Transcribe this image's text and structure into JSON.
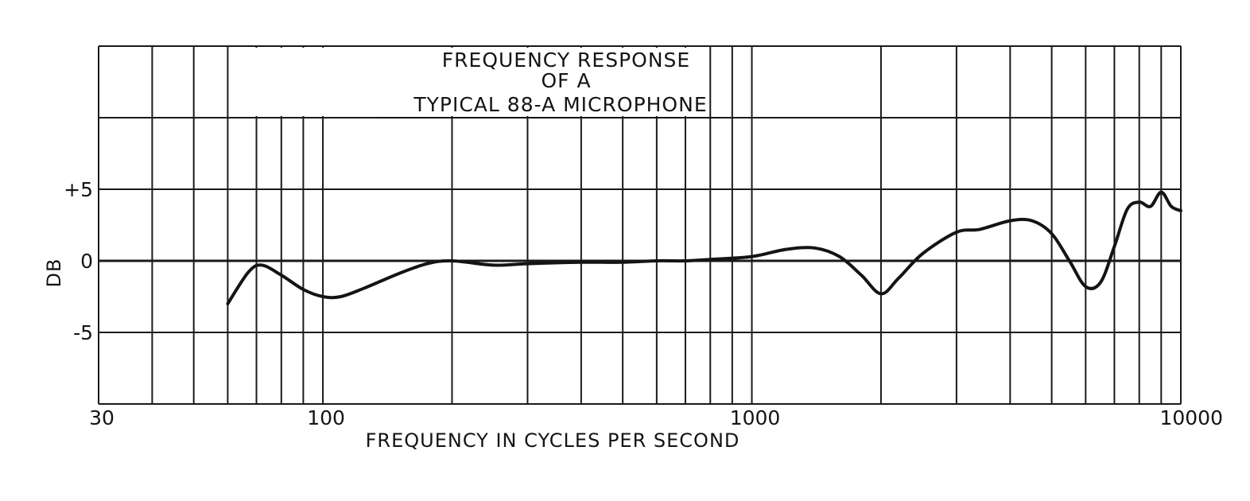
{
  "chart_data": {
    "type": "line",
    "title_lines": [
      "FREQUENCY RESPONSE",
      "OF A",
      "TYPICAL 88-A MICROPHONE"
    ],
    "xlabel": "FREQUENCY IN CYCLES PER SECOND",
    "ylabel": "DB",
    "x_scale": "log",
    "xlim": [
      30,
      10000
    ],
    "ylim": [
      -10,
      15
    ],
    "x_ticks": [
      {
        "value": 30,
        "label": "30"
      },
      {
        "value": 100,
        "label": "100"
      },
      {
        "value": 1000,
        "label": "1000"
      },
      {
        "value": 10000,
        "label": "10000"
      }
    ],
    "y_ticks": [
      {
        "value": 5,
        "label": "+5"
      },
      {
        "value": 0,
        "label": "0"
      },
      {
        "value": -5,
        "label": "-5"
      }
    ],
    "grid": true,
    "x_gridlines": [
      30,
      40,
      50,
      60,
      70,
      80,
      90,
      100,
      200,
      300,
      400,
      500,
      600,
      700,
      800,
      900,
      1000,
      2000,
      3000,
      4000,
      5000,
      6000,
      7000,
      8000,
      9000,
      10000
    ],
    "y_gridlines": [
      15,
      10,
      5,
      0,
      -5,
      -10
    ],
    "line_color": "#141414",
    "grid_color": "#1a1a1a",
    "series": [
      {
        "x": [
          60,
          67,
          72,
          80,
          90,
          100,
          110,
          125,
          150,
          175,
          200,
          250,
          300,
          400,
          500,
          600,
          700,
          800,
          1000,
          1200,
          1400,
          1600,
          1800,
          2000,
          2200,
          2500,
          3000,
          3400,
          4000,
          4500,
          5000,
          5500,
          6000,
          6500,
          7000,
          7500,
          8000,
          8500,
          9000,
          9500,
          10000
        ],
        "y": [
          -3.0,
          -0.8,
          -0.3,
          -1.0,
          -2.0,
          -2.5,
          -2.5,
          -1.9,
          -0.9,
          -0.2,
          0.0,
          -0.3,
          -0.2,
          -0.1,
          -0.1,
          0.0,
          0.0,
          0.1,
          0.3,
          0.8,
          0.9,
          0.3,
          -1.0,
          -2.3,
          -1.2,
          0.5,
          2.0,
          2.2,
          2.8,
          2.8,
          1.9,
          0.0,
          -1.8,
          -1.5,
          1.0,
          3.6,
          4.1,
          3.8,
          4.8,
          3.8,
          3.5
        ]
      }
    ]
  }
}
